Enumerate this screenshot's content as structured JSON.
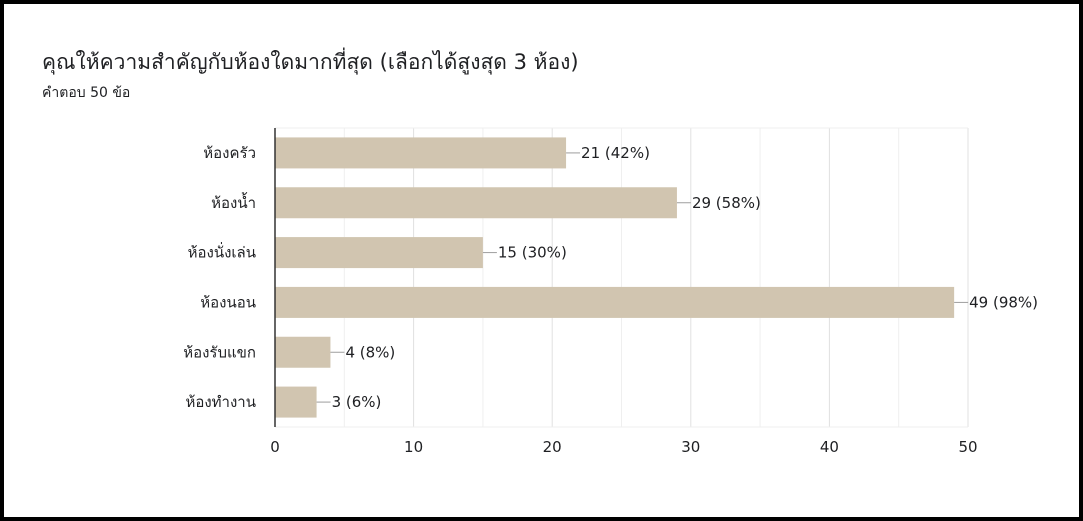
{
  "form_summary": {
    "title": "คุณให้ความสำคัญกับห้องใดมากที่สุด (เลือกได้สูงสุด 3 ห้อง)",
    "subtitle": "คำตอบ 50 ข้อ"
  },
  "chart_data": {
    "type": "bar",
    "orientation": "horizontal",
    "categories": [
      "ห้องครัว",
      "ห้องน้ำ",
      "ห้องนั่งเล่น",
      "ห้องนอน",
      "ห้องรับแขก",
      "ห้องทำงาน"
    ],
    "values": [
      21,
      29,
      15,
      49,
      4,
      3
    ],
    "data_labels": [
      "21 (42%)",
      "29 (58%)",
      "15 (30%)",
      "49 (98%)",
      "4 (8%)",
      "3 (6%)"
    ],
    "title": "คุณให้ความสำคัญกับห้องใดมากที่สุด (เลือกได้สูงสุด 3 ห้อง)",
    "subtitle": "คำตอบ 50 ข้อ",
    "xlabel": "",
    "ylabel": "",
    "xlim": [
      0,
      50
    ],
    "x_ticks": [
      0,
      10,
      20,
      30,
      40,
      50
    ],
    "grid": true,
    "legend": "none",
    "bar_color": "#d1c5b0"
  }
}
